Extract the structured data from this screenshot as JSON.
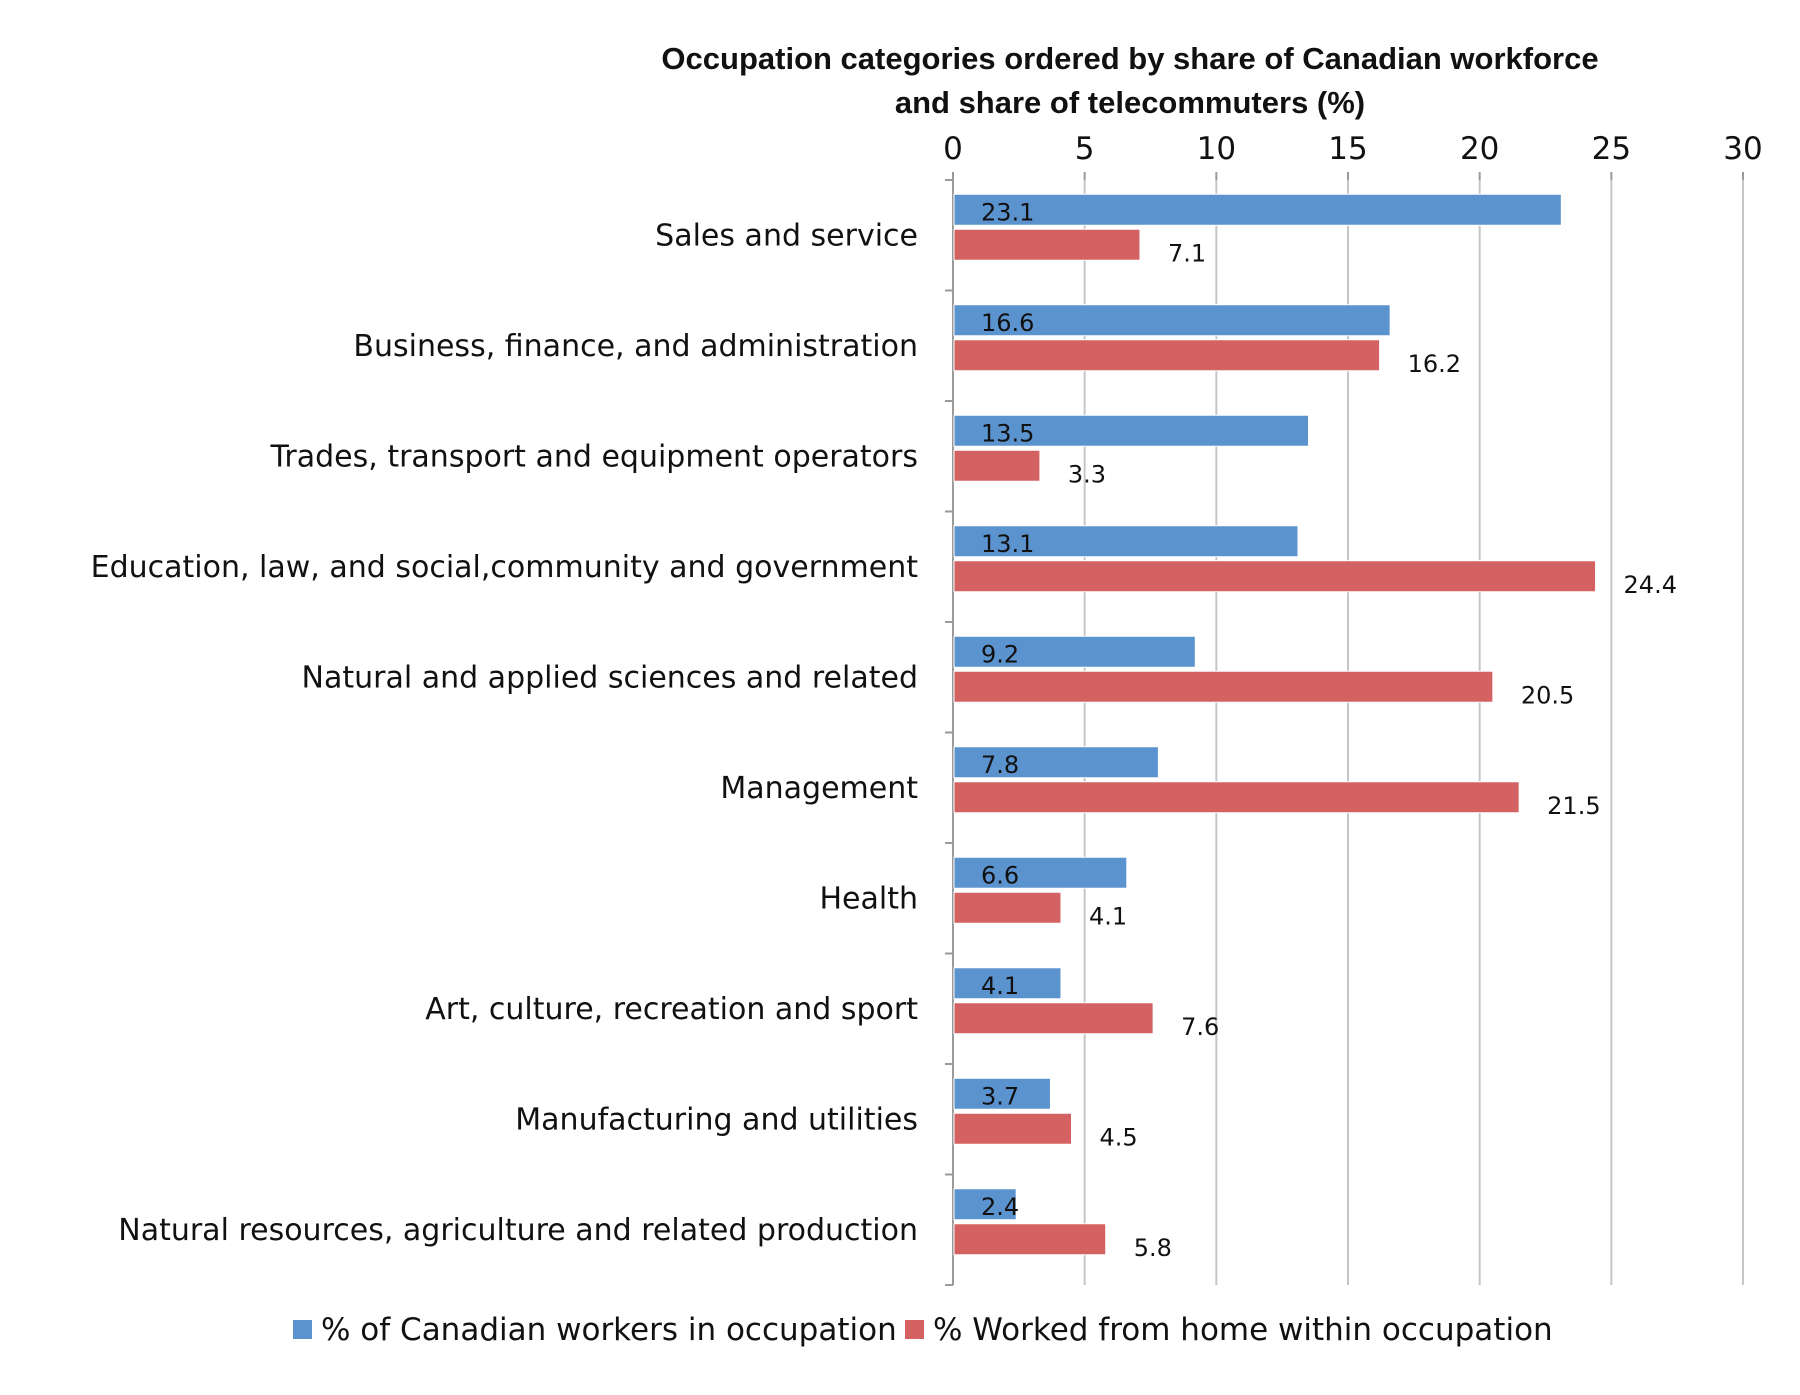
{
  "chart_data": {
    "type": "bar",
    "orientation": "horizontal",
    "title_lines": [
      "Occupation categories ordered by share of Canadian workforce",
      "and share of telecommuters (%)"
    ],
    "xlim": [
      0,
      30
    ],
    "x_ticks": [
      0,
      5,
      10,
      15,
      20,
      25,
      30
    ],
    "x_axis_position": "top",
    "grid": true,
    "legend_position": "bottom",
    "categories": [
      "Sales and service",
      "Business, finance, and administration",
      "Trades, transport and equipment operators",
      "Education, law, and social,community and government",
      "Natural and applied sciences and related",
      "Management",
      "Health",
      "Art, culture, recreation and sport",
      "Manufacturing and utilities",
      "Natural resources, agriculture and related production"
    ],
    "series": [
      {
        "name": "% of Canadian workers in occupation",
        "color": "#5b93cf",
        "values": [
          23.1,
          16.6,
          13.5,
          13.1,
          9.2,
          7.8,
          6.6,
          4.1,
          3.7,
          2.4
        ],
        "labels": [
          "23.1",
          "16.6",
          "13.5",
          "13.1",
          "9.2",
          "7.8",
          "6.6",
          "4.1",
          "3.7",
          "2.4"
        ]
      },
      {
        "name": "% Worked from home within occupation",
        "color": "#d46262",
        "values": [
          7.1,
          16.2,
          3.3,
          24.4,
          20.5,
          21.5,
          4.1,
          7.6,
          4.5,
          5.8
        ],
        "labels": [
          "7.1",
          "16.2",
          "3.3",
          "24.4",
          "20.5",
          "21.5",
          "4.1",
          "7.6",
          "4.5",
          "5.8"
        ]
      }
    ]
  }
}
